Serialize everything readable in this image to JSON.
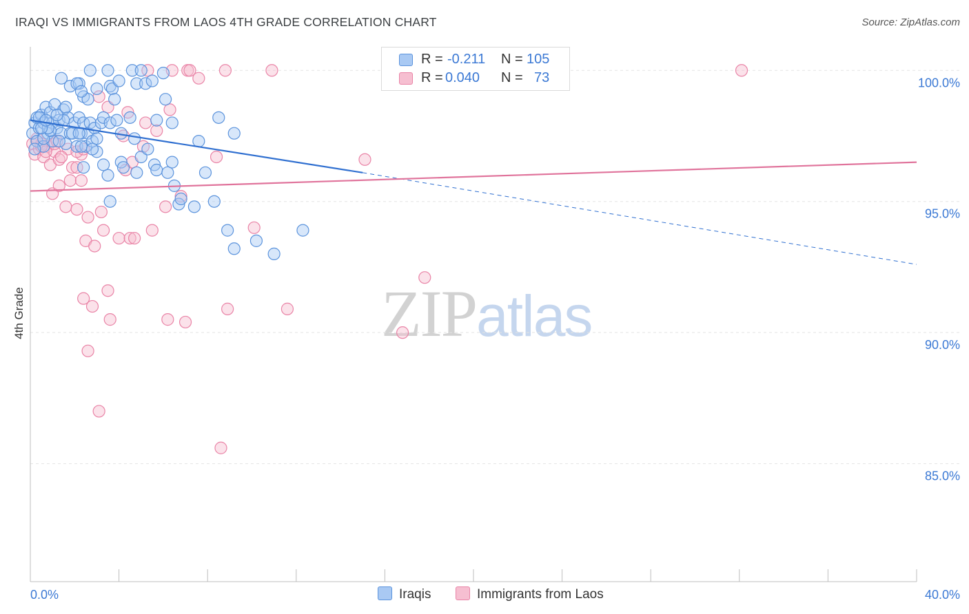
{
  "title": "IRAQI VS IMMIGRANTS FROM LAOS 4TH GRADE CORRELATION CHART",
  "source": "Source: ZipAtlas.com",
  "watermark": {
    "zip": "ZIP",
    "atlas": "atlas"
  },
  "stats": {
    "row1": {
      "r_label": "R =",
      "r_value": "-0.211",
      "n_label": "N =",
      "n_value": "105"
    },
    "row2": {
      "r_label": "R =",
      "r_value": "0.040",
      "n_label": "N =",
      "n_value": "73"
    }
  },
  "legend": {
    "iraqis": "Iraqis",
    "laos": "Immigrants from Laos"
  },
  "colors": {
    "iraqis_fill": "#a9c9f3",
    "iraqis_stroke": "#5b93dc",
    "iraqis_line": "#2f6fd0",
    "laos_fill": "#f6bfd1",
    "laos_stroke": "#e983a6",
    "laos_line": "#e0739b",
    "tick_label": "#3a78d4",
    "grid": "#e3e3e3"
  },
  "chart_data": {
    "type": "scatter",
    "ylabel": "4th Grade",
    "xlim": [
      0,
      40
    ],
    "ylim": [
      80.5,
      100.9
    ],
    "x_tick_labels": {
      "left": "0.0%",
      "right": "40.0%"
    },
    "y_ticks": [
      {
        "value": 100,
        "label": "100.0%"
      },
      {
        "value": 95,
        "label": "95.0%"
      },
      {
        "value": 90,
        "label": "90.0%"
      },
      {
        "value": 85,
        "label": "85.0%"
      }
    ],
    "grid": true,
    "series": [
      {
        "name": "Iraqis",
        "trend": {
          "x0": 0,
          "y0": 98.1,
          "x1": 15.0,
          "y1": 96.1,
          "dash_to_x": 40,
          "dash_to_y": 92.6
        },
        "points": [
          [
            0.1,
            97.6
          ],
          [
            0.2,
            98.0
          ],
          [
            0.3,
            97.3
          ],
          [
            0.3,
            98.2
          ],
          [
            0.4,
            97.8
          ],
          [
            0.5,
            98.3
          ],
          [
            0.6,
            98.0
          ],
          [
            0.6,
            97.1
          ],
          [
            0.7,
            98.6
          ],
          [
            0.8,
            97.6
          ],
          [
            0.9,
            98.4
          ],
          [
            1.0,
            98.0
          ],
          [
            1.0,
            97.3
          ],
          [
            1.1,
            98.7
          ],
          [
            1.2,
            97.8
          ],
          [
            1.3,
            98.1
          ],
          [
            1.4,
            97.6
          ],
          [
            1.5,
            98.5
          ],
          [
            1.6,
            97.2
          ],
          [
            1.7,
            98.2
          ],
          [
            1.8,
            97.6
          ],
          [
            2.0,
            98.0
          ],
          [
            2.1,
            97.1
          ],
          [
            2.2,
            98.2
          ],
          [
            2.3,
            97.6
          ],
          [
            2.4,
            98.0
          ],
          [
            2.5,
            97.1
          ],
          [
            2.6,
            97.6
          ],
          [
            2.7,
            98.0
          ],
          [
            2.8,
            97.3
          ],
          [
            2.9,
            97.8
          ],
          [
            3.0,
            96.9
          ],
          [
            0.2,
            97.0
          ],
          [
            0.4,
            98.2
          ],
          [
            0.6,
            97.4
          ],
          [
            0.9,
            97.7
          ],
          [
            1.3,
            97.3
          ],
          [
            1.5,
            98.1
          ],
          [
            1.9,
            97.6
          ],
          [
            2.3,
            97.1
          ],
          [
            1.8,
            99.4
          ],
          [
            2.2,
            99.5
          ],
          [
            2.4,
            99.0
          ],
          [
            2.6,
            98.9
          ],
          [
            2.7,
            100.0
          ],
          [
            3.0,
            99.3
          ],
          [
            3.5,
            100.0
          ],
          [
            3.6,
            99.4
          ],
          [
            3.7,
            99.3
          ],
          [
            3.8,
            98.9
          ],
          [
            4.0,
            99.6
          ],
          [
            4.6,
            100.0
          ],
          [
            4.8,
            99.5
          ],
          [
            5.0,
            100.0
          ],
          [
            5.2,
            99.5
          ],
          [
            5.5,
            99.6
          ],
          [
            2.1,
            99.5
          ],
          [
            2.3,
            99.2
          ],
          [
            1.4,
            99.7
          ],
          [
            3.2,
            98.0
          ],
          [
            3.3,
            98.2
          ],
          [
            3.6,
            98.0
          ],
          [
            3.9,
            98.1
          ],
          [
            4.1,
            97.6
          ],
          [
            4.5,
            98.2
          ],
          [
            4.8,
            96.1
          ],
          [
            4.1,
            96.5
          ],
          [
            3.5,
            96.0
          ],
          [
            3.6,
            95.0
          ],
          [
            5.0,
            96.7
          ],
          [
            5.6,
            96.4
          ],
          [
            5.7,
            96.2
          ],
          [
            6.2,
            96.1
          ],
          [
            6.4,
            96.5
          ],
          [
            6.5,
            95.6
          ],
          [
            6.7,
            94.9
          ],
          [
            7.4,
            94.8
          ],
          [
            6.8,
            95.1
          ],
          [
            8.3,
            95.0
          ],
          [
            8.9,
            93.9
          ],
          [
            9.2,
            93.2
          ],
          [
            10.2,
            93.5
          ],
          [
            11.0,
            93.0
          ],
          [
            12.3,
            93.9
          ],
          [
            7.6,
            97.3
          ],
          [
            9.2,
            97.6
          ],
          [
            6.4,
            98.0
          ],
          [
            5.7,
            98.1
          ],
          [
            6.1,
            98.9
          ],
          [
            6.0,
            99.9
          ],
          [
            7.9,
            96.1
          ],
          [
            4.2,
            96.3
          ],
          [
            8.5,
            98.2
          ],
          [
            3.3,
            96.4
          ],
          [
            2.4,
            96.3
          ],
          [
            4.7,
            97.4
          ],
          [
            2.2,
            97.6
          ],
          [
            2.8,
            97.0
          ],
          [
            3.0,
            97.4
          ],
          [
            0.8,
            97.8
          ],
          [
            5.3,
            97.0
          ],
          [
            1.2,
            98.3
          ],
          [
            1.6,
            98.6
          ],
          [
            0.5,
            97.8
          ],
          [
            0.7,
            98.1
          ]
        ]
      },
      {
        "name": "Immigrants from Laos",
        "trend": {
          "x0": 0,
          "y0": 95.4,
          "x1": 40,
          "y1": 96.5
        },
        "points": [
          [
            0.1,
            97.2
          ],
          [
            0.2,
            96.8
          ],
          [
            0.3,
            97.4
          ],
          [
            0.4,
            97.0
          ],
          [
            0.5,
            97.2
          ],
          [
            0.6,
            96.7
          ],
          [
            0.8,
            97.1
          ],
          [
            0.9,
            96.4
          ],
          [
            1.1,
            96.9
          ],
          [
            1.3,
            96.6
          ],
          [
            1.0,
            95.3
          ],
          [
            1.3,
            95.6
          ],
          [
            1.8,
            95.8
          ],
          [
            2.3,
            95.8
          ],
          [
            1.6,
            94.8
          ],
          [
            2.1,
            94.7
          ],
          [
            2.6,
            94.4
          ],
          [
            3.2,
            94.6
          ],
          [
            2.5,
            93.5
          ],
          [
            2.9,
            93.3
          ],
          [
            3.3,
            93.9
          ],
          [
            4.0,
            93.6
          ],
          [
            4.5,
            93.6
          ],
          [
            4.7,
            93.6
          ],
          [
            5.5,
            93.9
          ],
          [
            6.1,
            94.8
          ],
          [
            6.8,
            95.2
          ],
          [
            1.9,
            96.3
          ],
          [
            2.3,
            96.8
          ],
          [
            3.1,
            99.0
          ],
          [
            3.5,
            98.6
          ],
          [
            4.2,
            97.5
          ],
          [
            4.4,
            98.4
          ],
          [
            5.2,
            98.0
          ],
          [
            5.7,
            97.7
          ],
          [
            6.3,
            98.5
          ],
          [
            5.1,
            97.1
          ],
          [
            6.4,
            100.0
          ],
          [
            7.1,
            100.0
          ],
          [
            7.2,
            100.0
          ],
          [
            7.6,
            99.7
          ],
          [
            8.8,
            100.0
          ],
          [
            10.9,
            100.0
          ],
          [
            8.4,
            96.7
          ],
          [
            15.1,
            96.6
          ],
          [
            32.1,
            100.0
          ],
          [
            5.3,
            100.0
          ],
          [
            3.5,
            91.6
          ],
          [
            2.4,
            91.3
          ],
          [
            2.8,
            91.0
          ],
          [
            3.6,
            90.5
          ],
          [
            6.2,
            90.5
          ],
          [
            7.0,
            90.4
          ],
          [
            8.9,
            90.9
          ],
          [
            11.6,
            90.9
          ],
          [
            16.8,
            90.0
          ],
          [
            17.8,
            92.1
          ],
          [
            2.6,
            89.3
          ],
          [
            3.1,
            87.0
          ],
          [
            8.6,
            85.6
          ],
          [
            10.1,
            94.0
          ],
          [
            1.7,
            97.0
          ],
          [
            2.1,
            96.9
          ],
          [
            4.3,
            96.2
          ],
          [
            4.6,
            96.5
          ],
          [
            2.1,
            96.3
          ],
          [
            1.1,
            97.2
          ],
          [
            0.7,
            96.9
          ],
          [
            0.5,
            97.1
          ],
          [
            1.4,
            96.7
          ],
          [
            0.3,
            97.3
          ],
          [
            2.4,
            97.0
          ],
          [
            1.2,
            97.3
          ]
        ]
      }
    ]
  }
}
